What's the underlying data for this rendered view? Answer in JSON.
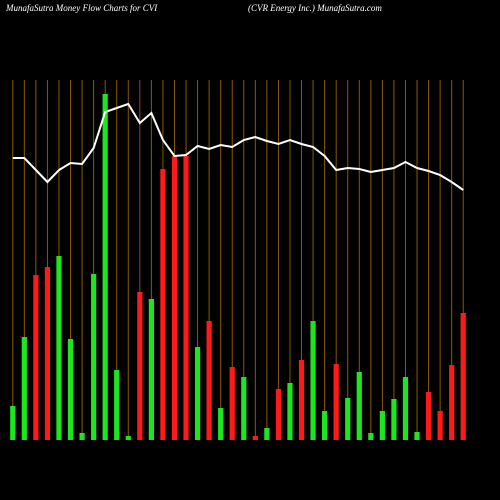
{
  "chart_data": {
    "type": "bar",
    "title": "MunafaSutra  Money Flow  Charts for CVI",
    "subtitle": "(CVR Energy Inc.) MunafaSutra.com",
    "categories": [
      null,
      null,
      null,
      null,
      null,
      null,
      null,
      null,
      null,
      null,
      null,
      null,
      null,
      null,
      null,
      null,
      null,
      null,
      null,
      null,
      null,
      null,
      null,
      null,
      null,
      null,
      null,
      null,
      null,
      null,
      null,
      null,
      null,
      null,
      null,
      null,
      null,
      null,
      null,
      null
    ],
    "ylim": [
      0,
      350
    ],
    "grid_color": "#8a5a00",
    "series": [
      {
        "type": "bar",
        "values": [
          34,
          103,
          165,
          173,
          184,
          101,
          7,
          166,
          346,
          70,
          4,
          148,
          141,
          271,
          284,
          284,
          93,
          119,
          32,
          73,
          63,
          4,
          12,
          51,
          57,
          80,
          119,
          29,
          76,
          42,
          68,
          7,
          29,
          41,
          63,
          8,
          48,
          29,
          75,
          127
        ],
        "colors": [
          "#1ee61e",
          "#1ee61e",
          "#ff1a1a",
          "#ff1a1a",
          "#1ee61e",
          "#1ee61e",
          "#1ee61e",
          "#1ee61e",
          "#1ee61e",
          "#1ee61e",
          "#1ee61e",
          "#ff1a1a",
          "#1ee61e",
          "#ff1a1a",
          "#ff1a1a",
          "#ff1a1a",
          "#1ee61e",
          "#ff1a1a",
          "#1ee61e",
          "#ff1a1a",
          "#1ee61e",
          "#ff1a1a",
          "#1ee61e",
          "#ff1a1a",
          "#1ee61e",
          "#ff1a1a",
          "#1ee61e",
          "#1ee61e",
          "#ff1a1a",
          "#1ee61e",
          "#1ee61e",
          "#1ee61e",
          "#1ee61e",
          "#1ee61e",
          "#1ee61e",
          "#1ee61e",
          "#ff1a1a",
          "#ff1a1a",
          "#ff1a1a",
          "#ff1a1a"
        ]
      },
      {
        "type": "line",
        "color": "#ffffff",
        "values": [
          282,
          282,
          270,
          258,
          270,
          277,
          276,
          292,
          328,
          332,
          336,
          317,
          327,
          300,
          284,
          285,
          294,
          291,
          295,
          293,
          300,
          303,
          299,
          296,
          300,
          296,
          293,
          284,
          270,
          272,
          271,
          268,
          270,
          272,
          278,
          272,
          269,
          265,
          258,
          250
        ]
      }
    ]
  }
}
